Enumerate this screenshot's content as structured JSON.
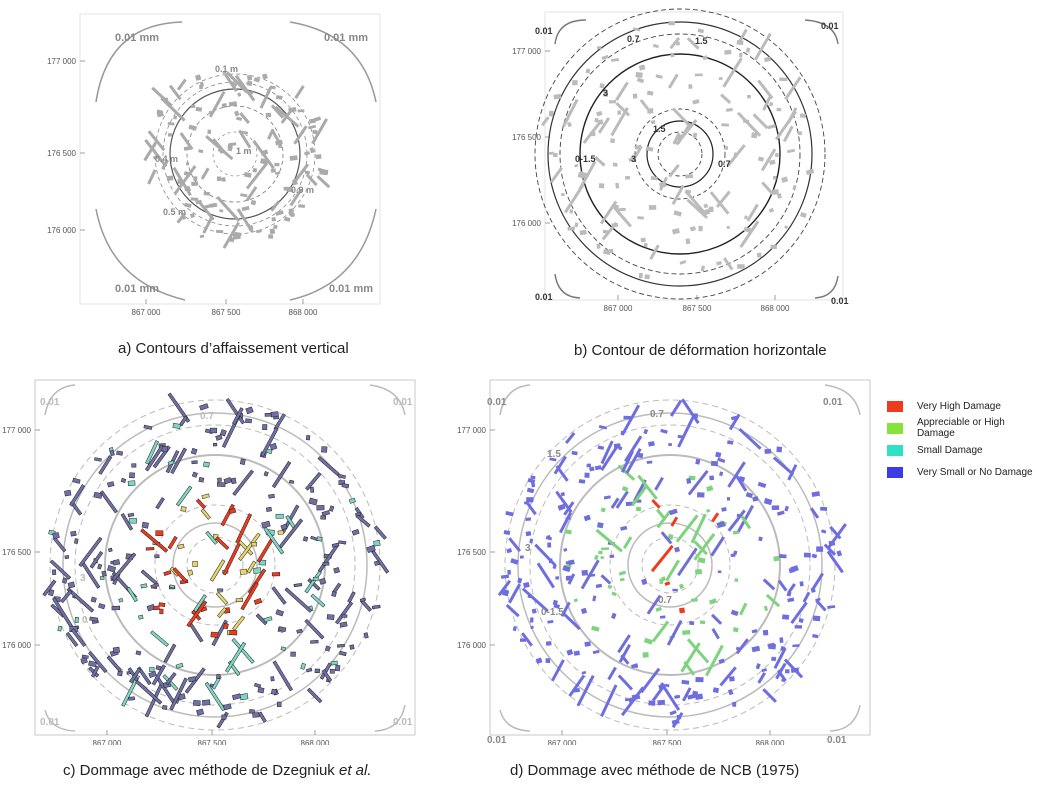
{
  "panels": [
    {
      "id": "a",
      "caption": "a) Contours d’affaissement vertical",
      "y_ticks": [
        "177 000",
        "176 500",
        "176 000"
      ],
      "x_ticks": [
        "867 000",
        "867 500",
        "868 000"
      ],
      "contour_labels": [
        "0.01 mm",
        "0.01 mm",
        "0.01 mm",
        "0.01 mm",
        "0.1 m",
        "0.4 m",
        "1 m",
        "0.9 m",
        "0.5 m"
      ]
    },
    {
      "id": "b",
      "caption": "b) Contour de déformation horizontale",
      "y_ticks": [
        "177 000",
        "176 500",
        "176 000"
      ],
      "x_ticks": [
        "867 000",
        "867 500",
        "868 000"
      ],
      "contour_labels": [
        "0.01",
        "0.01",
        "0.01",
        "0.01",
        "0.7",
        "1.5",
        "3",
        "1.5",
        "0-1.5",
        "3",
        "0.7"
      ]
    },
    {
      "id": "c",
      "caption_main": "c) Dommage avec méthode de Dzegniuk ",
      "caption_italic": "et al.",
      "y_ticks": [
        "177 000",
        "176 500",
        "176 000"
      ],
      "x_ticks": [
        "867 000",
        "867 500",
        "868 000"
      ],
      "contour_labels": [
        "0.01",
        "0.01",
        "0.01",
        "0.01",
        "0.7",
        "3",
        "0"
      ]
    },
    {
      "id": "d",
      "caption": "d) Dommage avec méthode de NCB (1975)",
      "y_ticks": [
        "177 000",
        "176 500",
        "176 000"
      ],
      "x_ticks": [
        "867 000",
        "867 500",
        "868 000"
      ],
      "contour_labels": [
        "0.01",
        "0.01",
        "0.01",
        "0.01",
        "0.7",
        "1.5",
        "3",
        "0-1.5",
        "0.7"
      ]
    }
  ],
  "legend": [
    {
      "label": "Very High Damage",
      "color": "#ee3b1e"
    },
    {
      "label": "Appreciable or High Damage",
      "color": "#86e33a"
    },
    {
      "label": "Small Damage",
      "color": "#2fe0c4"
    },
    {
      "label": "Very Small or No Damage",
      "color": "#3b3ce8"
    }
  ]
}
